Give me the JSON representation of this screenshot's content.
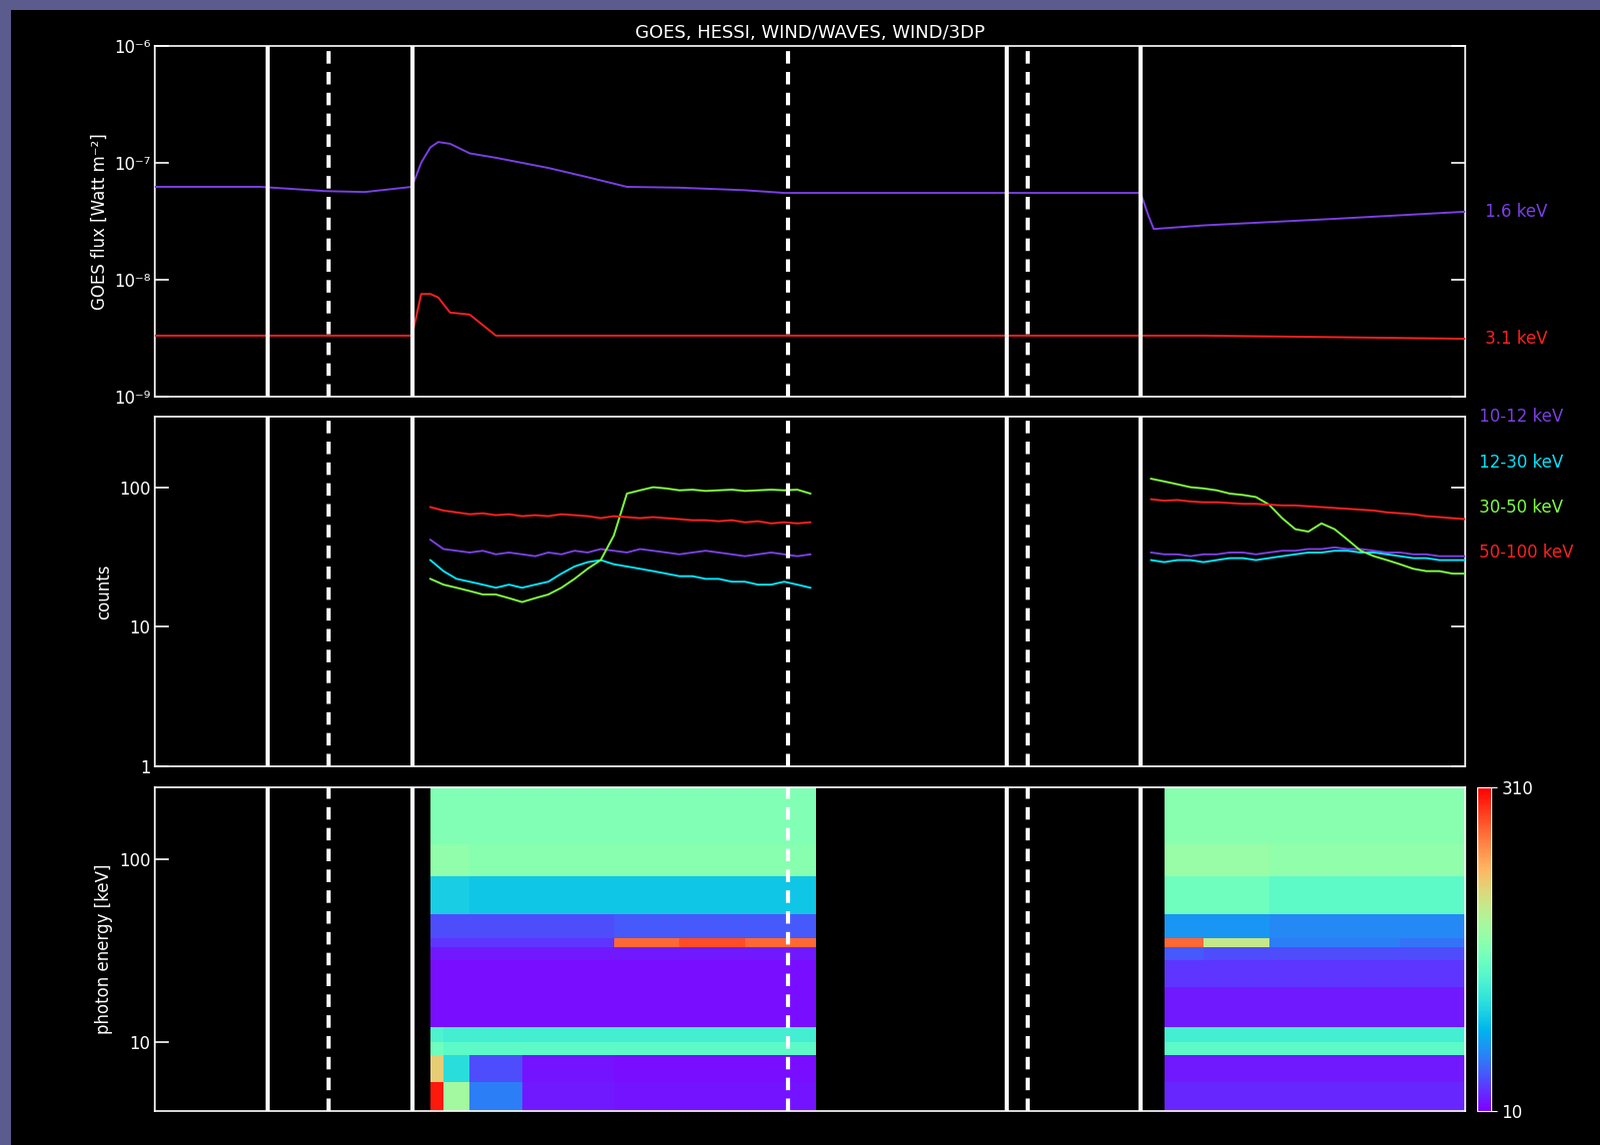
{
  "chart_data": [
    {
      "type": "line",
      "title": "GOES, HESSI, WIND/WAVES, WIND/3DP",
      "y_label": "GOES flux [Watt m⁻²]",
      "log": "y",
      "tick_labels": "y",
      "xlim": [
        0,
        100
      ],
      "ylim": [
        1e-09,
        1e-06
      ],
      "yticks": [
        {
          "value": 1e-09,
          "label": "10⁻⁹"
        },
        {
          "value": 1e-08,
          "label": "10⁻⁸"
        },
        {
          "value": 1e-07,
          "label": "10⁻⁷"
        },
        {
          "value": 1e-06,
          "label": "10⁻⁶"
        }
      ],
      "vlines": {
        "solid": [
          8.6,
          19.6,
          65.0,
          75.2
        ],
        "dashed": [
          13.2,
          48.3,
          66.6
        ]
      },
      "x": [
        0,
        8,
        13,
        16,
        19.6,
        20.3,
        21,
        21.6,
        22.5,
        24,
        26,
        30,
        33,
        36,
        40,
        45,
        48,
        55,
        65,
        75.2,
        75.8,
        76.2,
        80,
        90,
        100
      ],
      "series": [
        {
          "name": "1.6 keV",
          "color": "#7b3fe4",
          "values": [
            6.2e-08,
            6.2e-08,
            5.7e-08,
            5.6e-08,
            6.2e-08,
            1e-07,
            1.35e-07,
            1.5e-07,
            1.45e-07,
            1.2e-07,
            1.1e-07,
            9e-08,
            7.5e-08,
            6.2e-08,
            6.1e-08,
            5.8e-08,
            5.5e-08,
            5.5e-08,
            5.5e-08,
            5.5e-08,
            3.5e-08,
            2.7e-08,
            2.9e-08,
            3.3e-08,
            3.8e-08
          ]
        },
        {
          "name": "3.1 keV",
          "color": "#ff2020",
          "values": [
            3.3e-09,
            3.3e-09,
            3.3e-09,
            3.3e-09,
            3.3e-09,
            7.5e-09,
            7.5e-09,
            7e-09,
            5.2e-09,
            5e-09,
            3.3e-09,
            3.3e-09,
            3.3e-09,
            3.3e-09,
            3.3e-09,
            3.3e-09,
            3.3e-09,
            3.3e-09,
            3.3e-09,
            3.3e-09,
            3.3e-09,
            3.3e-09,
            3.3e-09,
            3.2e-09,
            3.1e-09
          ]
        }
      ]
    },
    {
      "type": "line",
      "y_label": "counts",
      "log": "y",
      "tick_labels": "y",
      "xlim": [
        0,
        100
      ],
      "ylim": [
        1,
        320
      ],
      "yticks": [
        1,
        10,
        100
      ],
      "vlines": {
        "solid": [
          8.6,
          19.6,
          65.0,
          75.2
        ],
        "dashed": [
          13.2,
          48.3,
          66.6
        ]
      },
      "x": [
        21,
        22,
        23,
        24,
        25,
        26,
        27,
        28,
        29,
        30,
        31,
        32,
        33,
        34,
        35,
        36,
        37,
        38,
        39,
        40,
        41,
        42,
        43,
        44,
        45,
        46,
        47,
        48,
        49,
        50,
        63,
        76,
        77,
        78,
        79,
        80,
        81,
        82,
        83,
        84,
        85,
        86,
        87,
        88,
        89,
        90,
        91,
        92,
        93,
        94,
        95,
        96,
        97,
        98,
        99,
        100
      ],
      "series": [
        {
          "name": "10-12 keV",
          "color": "#7b3fe4",
          "values": [
            42,
            36,
            35,
            34,
            35,
            33,
            34,
            33,
            32,
            34,
            33,
            35,
            34,
            36,
            35,
            34,
            36,
            35,
            34,
            33,
            34,
            35,
            34,
            33,
            32,
            33,
            34,
            33,
            32,
            33,
            null,
            34,
            33,
            33,
            32,
            33,
            33,
            34,
            34,
            33,
            34,
            35,
            35,
            36,
            36,
            37,
            36,
            36,
            35,
            34,
            34,
            33,
            33,
            32,
            32,
            32
          ]
        },
        {
          "name": "12-30 keV",
          "color": "#00e5ff",
          "values": [
            30,
            25,
            22,
            21,
            20,
            19,
            20,
            19,
            20,
            21,
            24,
            27,
            29,
            30,
            28,
            27,
            26,
            25,
            24,
            23,
            23,
            22,
            22,
            21,
            21,
            20,
            20,
            21,
            20,
            19,
            null,
            30,
            29,
            30,
            30,
            29,
            30,
            31,
            31,
            30,
            31,
            32,
            33,
            34,
            34,
            35,
            35,
            34,
            34,
            33,
            32,
            31,
            31,
            30,
            30,
            30
          ]
        },
        {
          "name": "30-50 keV",
          "color": "#80ff40",
          "values": [
            22,
            20,
            19,
            18,
            17,
            17,
            16,
            15,
            16,
            17,
            19,
            22,
            26,
            30,
            45,
            90,
            95,
            100,
            98,
            95,
            96,
            94,
            95,
            96,
            94,
            95,
            96,
            95,
            96,
            90,
            null,
            115,
            110,
            105,
            100,
            98,
            95,
            90,
            88,
            85,
            75,
            60,
            50,
            48,
            55,
            50,
            42,
            35,
            32,
            30,
            28,
            26,
            25,
            25,
            24,
            24
          ]
        },
        {
          "name": "50-100 keV",
          "color": "#ff2020",
          "values": [
            72,
            68,
            66,
            64,
            65,
            63,
            64,
            62,
            63,
            62,
            64,
            63,
            62,
            60,
            62,
            61,
            60,
            61,
            60,
            59,
            58,
            58,
            57,
            58,
            56,
            57,
            55,
            56,
            55,
            56,
            null,
            82,
            80,
            81,
            79,
            78,
            78,
            77,
            76,
            76,
            75,
            74,
            74,
            73,
            72,
            71,
            70,
            69,
            68,
            66,
            65,
            64,
            62,
            61,
            60,
            59
          ]
        }
      ]
    },
    {
      "type": "heatmap",
      "y_label": "photon energy [keV]",
      "log": "y",
      "tick_labels": "y",
      "xlim": [
        0,
        100
      ],
      "ylim": [
        4.2,
        245
      ],
      "yticks": [
        10,
        100
      ],
      "vlines": {
        "solid": [
          8.6,
          19.6,
          65.0,
          75.2
        ],
        "dashed": [
          13.2,
          48.3,
          66.6
        ]
      },
      "x_edges": [
        21,
        22,
        24,
        28,
        35,
        40,
        45,
        50.4,
        77,
        80,
        85,
        90,
        95,
        100
      ],
      "y_edges": [
        4.2,
        6,
        8.5,
        10,
        12,
        20,
        28,
        33,
        37,
        50,
        80,
        120,
        245
      ],
      "cells": [
        [
          300,
          180,
          60,
          20,
          18,
          18,
          18,
          null,
          25,
          25,
          25,
          25,
          25
        ],
        [
          220,
          110,
          40,
          18,
          15,
          15,
          15,
          null,
          20,
          20,
          20,
          20,
          20
        ],
        [
          150,
          140,
          140,
          140,
          140,
          140,
          140,
          null,
          140,
          140,
          140,
          140,
          140
        ],
        [
          130,
          125,
          125,
          125,
          125,
          125,
          125,
          null,
          125,
          125,
          125,
          125,
          125
        ],
        [
          15,
          15,
          15,
          15,
          15,
          15,
          15,
          null,
          20,
          20,
          20,
          20,
          20
        ],
        [
          15,
          15,
          15,
          15,
          15,
          15,
          15,
          null,
          30,
          30,
          30,
          30,
          30
        ],
        [
          20,
          20,
          20,
          20,
          20,
          20,
          20,
          null,
          45,
          40,
          40,
          40,
          40
        ],
        [
          30,
          30,
          30,
          30,
          270,
          280,
          270,
          null,
          270,
          200,
          60,
          60,
          55
        ],
        [
          40,
          40,
          40,
          40,
          45,
          45,
          45,
          null,
          70,
          70,
          65,
          65,
          65
        ],
        [
          100,
          100,
          95,
          95,
          95,
          95,
          95,
          null,
          150,
          150,
          140,
          140,
          140
        ],
        [
          170,
          170,
          165,
          165,
          165,
          165,
          165,
          null,
          175,
          175,
          170,
          170,
          170
        ],
        [
          160,
          160,
          160,
          160,
          160,
          160,
          160,
          null,
          165,
          165,
          165,
          165,
          165
        ]
      ],
      "colorbar": {
        "range": [
          10,
          310
        ],
        "ticks": [
          10,
          310
        ]
      }
    }
  ]
}
